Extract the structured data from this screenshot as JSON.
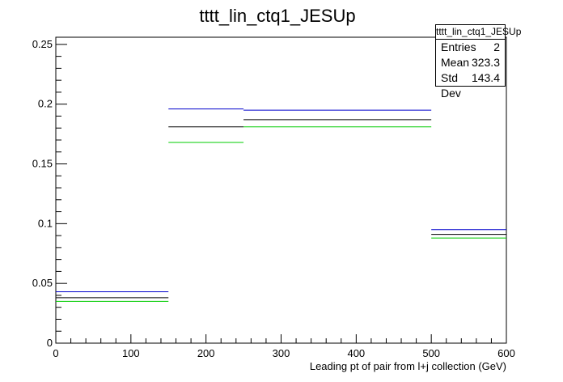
{
  "chart_data": {
    "type": "step",
    "title": "tttt_lin_ctq1_JESUp",
    "xlabel": "Leading pt of pair from l+j collection (GeV)",
    "ylabel": "",
    "xlim": [
      0,
      600
    ],
    "ylim": [
      0,
      0.256
    ],
    "bin_edges": [
      0,
      150,
      250,
      500,
      600
    ],
    "x_ticks": [
      0,
      100,
      200,
      300,
      400,
      500,
      600
    ],
    "y_ticks": [
      0,
      0.05,
      0.1,
      0.15,
      0.2,
      0.25
    ],
    "x_tick_labels": [
      "0",
      "100",
      "200",
      "300",
      "400",
      "500",
      "600"
    ],
    "y_tick_labels": [
      "0",
      "0.05",
      "0.1",
      "0.15",
      "0.2",
      "0.25"
    ],
    "series": [
      {
        "color": "#0000cc",
        "values": [
          0.043,
          0.196,
          0.195,
          0.095
        ]
      },
      {
        "color": "#000000",
        "values": [
          0.038,
          0.181,
          0.187,
          0.091
        ]
      },
      {
        "color": "#00cc00",
        "values": [
          0.035,
          0.168,
          0.181,
          0.088
        ]
      }
    ],
    "stats": {
      "name": "tttt_lin_ctq1_JESUp",
      "entries_label": "Entries",
      "entries": "2",
      "mean_label": "Mean",
      "mean": "323.3",
      "stddev_label": "Std Dev",
      "stddev": "143.4"
    },
    "grid": false,
    "legend": "top-right"
  }
}
